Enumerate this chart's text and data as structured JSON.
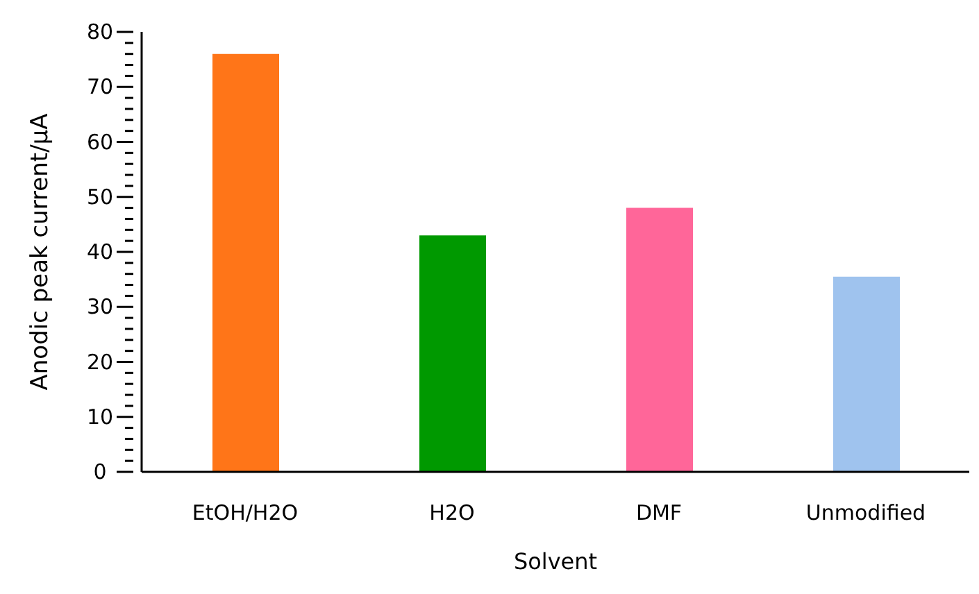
{
  "chart_data": {
    "type": "bar",
    "xlabel": "Solvent",
    "ylabel": "Anodic peak current/μA",
    "categories": [
      "EtOH/H2O",
      "H2O",
      "DMF",
      "Unmodified"
    ],
    "values": [
      76,
      43,
      48,
      35.5
    ],
    "colors": [
      "#ff7518",
      "#009900",
      "#ff6699",
      "#9fc3ee"
    ],
    "ylim": [
      0,
      80
    ],
    "yticks": [
      0,
      {
        "value": 2,
        "label": null
      },
      {
        "value": 4,
        "label": null
      },
      {
        "value": 6,
        "label": null
      },
      {
        "value": 8,
        "label": null
      },
      10,
      {
        "value": 12,
        "label": null
      },
      {
        "value": 14,
        "label": null
      },
      {
        "value": 16,
        "label": null
      },
      {
        "value": 18,
        "label": null
      },
      20,
      {
        "value": 22,
        "label": null
      },
      {
        "value": 24,
        "label": null
      },
      {
        "value": 26,
        "label": null
      },
      {
        "value": 28,
        "label": null
      },
      30,
      {
        "value": 32,
        "label": null
      },
      {
        "value": 34,
        "label": null
      },
      {
        "value": 36,
        "label": null
      },
      {
        "value": 38,
        "label": null
      },
      40,
      {
        "value": 42,
        "label": null
      },
      {
        "value": 44,
        "label": null
      },
      {
        "value": 46,
        "label": null
      },
      {
        "value": 48,
        "label": null
      },
      50,
      {
        "value": 52,
        "label": null
      },
      {
        "value": 54,
        "label": null
      },
      {
        "value": 56,
        "label": null
      },
      {
        "value": 58,
        "label": null
      },
      60,
      {
        "value": 62,
        "label": null
      },
      {
        "value": 64,
        "label": null
      },
      {
        "value": 66,
        "label": null
      },
      {
        "value": 68,
        "label": null
      },
      70,
      {
        "value": 72,
        "label": null
      },
      {
        "value": 74,
        "label": null
      },
      {
        "value": 76,
        "label": null
      },
      {
        "value": 78,
        "label": null
      },
      80
    ],
    "grid": false
  }
}
